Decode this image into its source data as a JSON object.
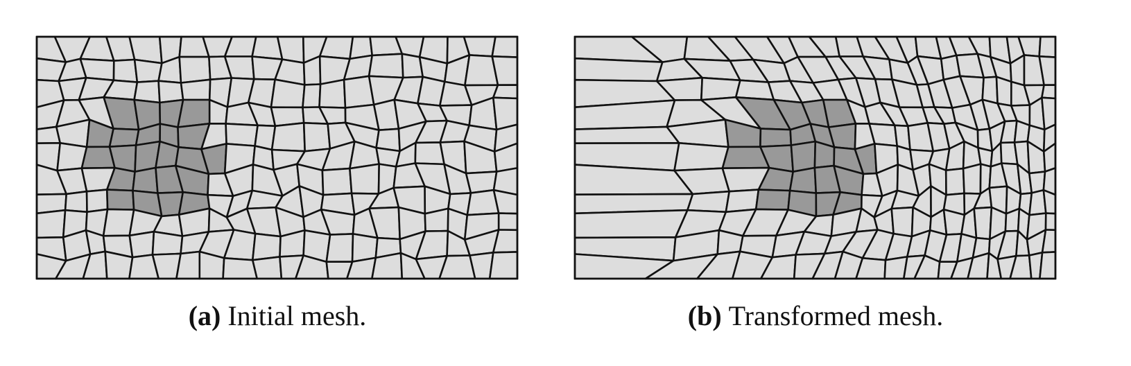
{
  "figure": {
    "panels": [
      {
        "label": "(a)",
        "caption": "Initial mesh."
      },
      {
        "label": "(b)",
        "caption": "Transformed mesh."
      }
    ]
  }
}
